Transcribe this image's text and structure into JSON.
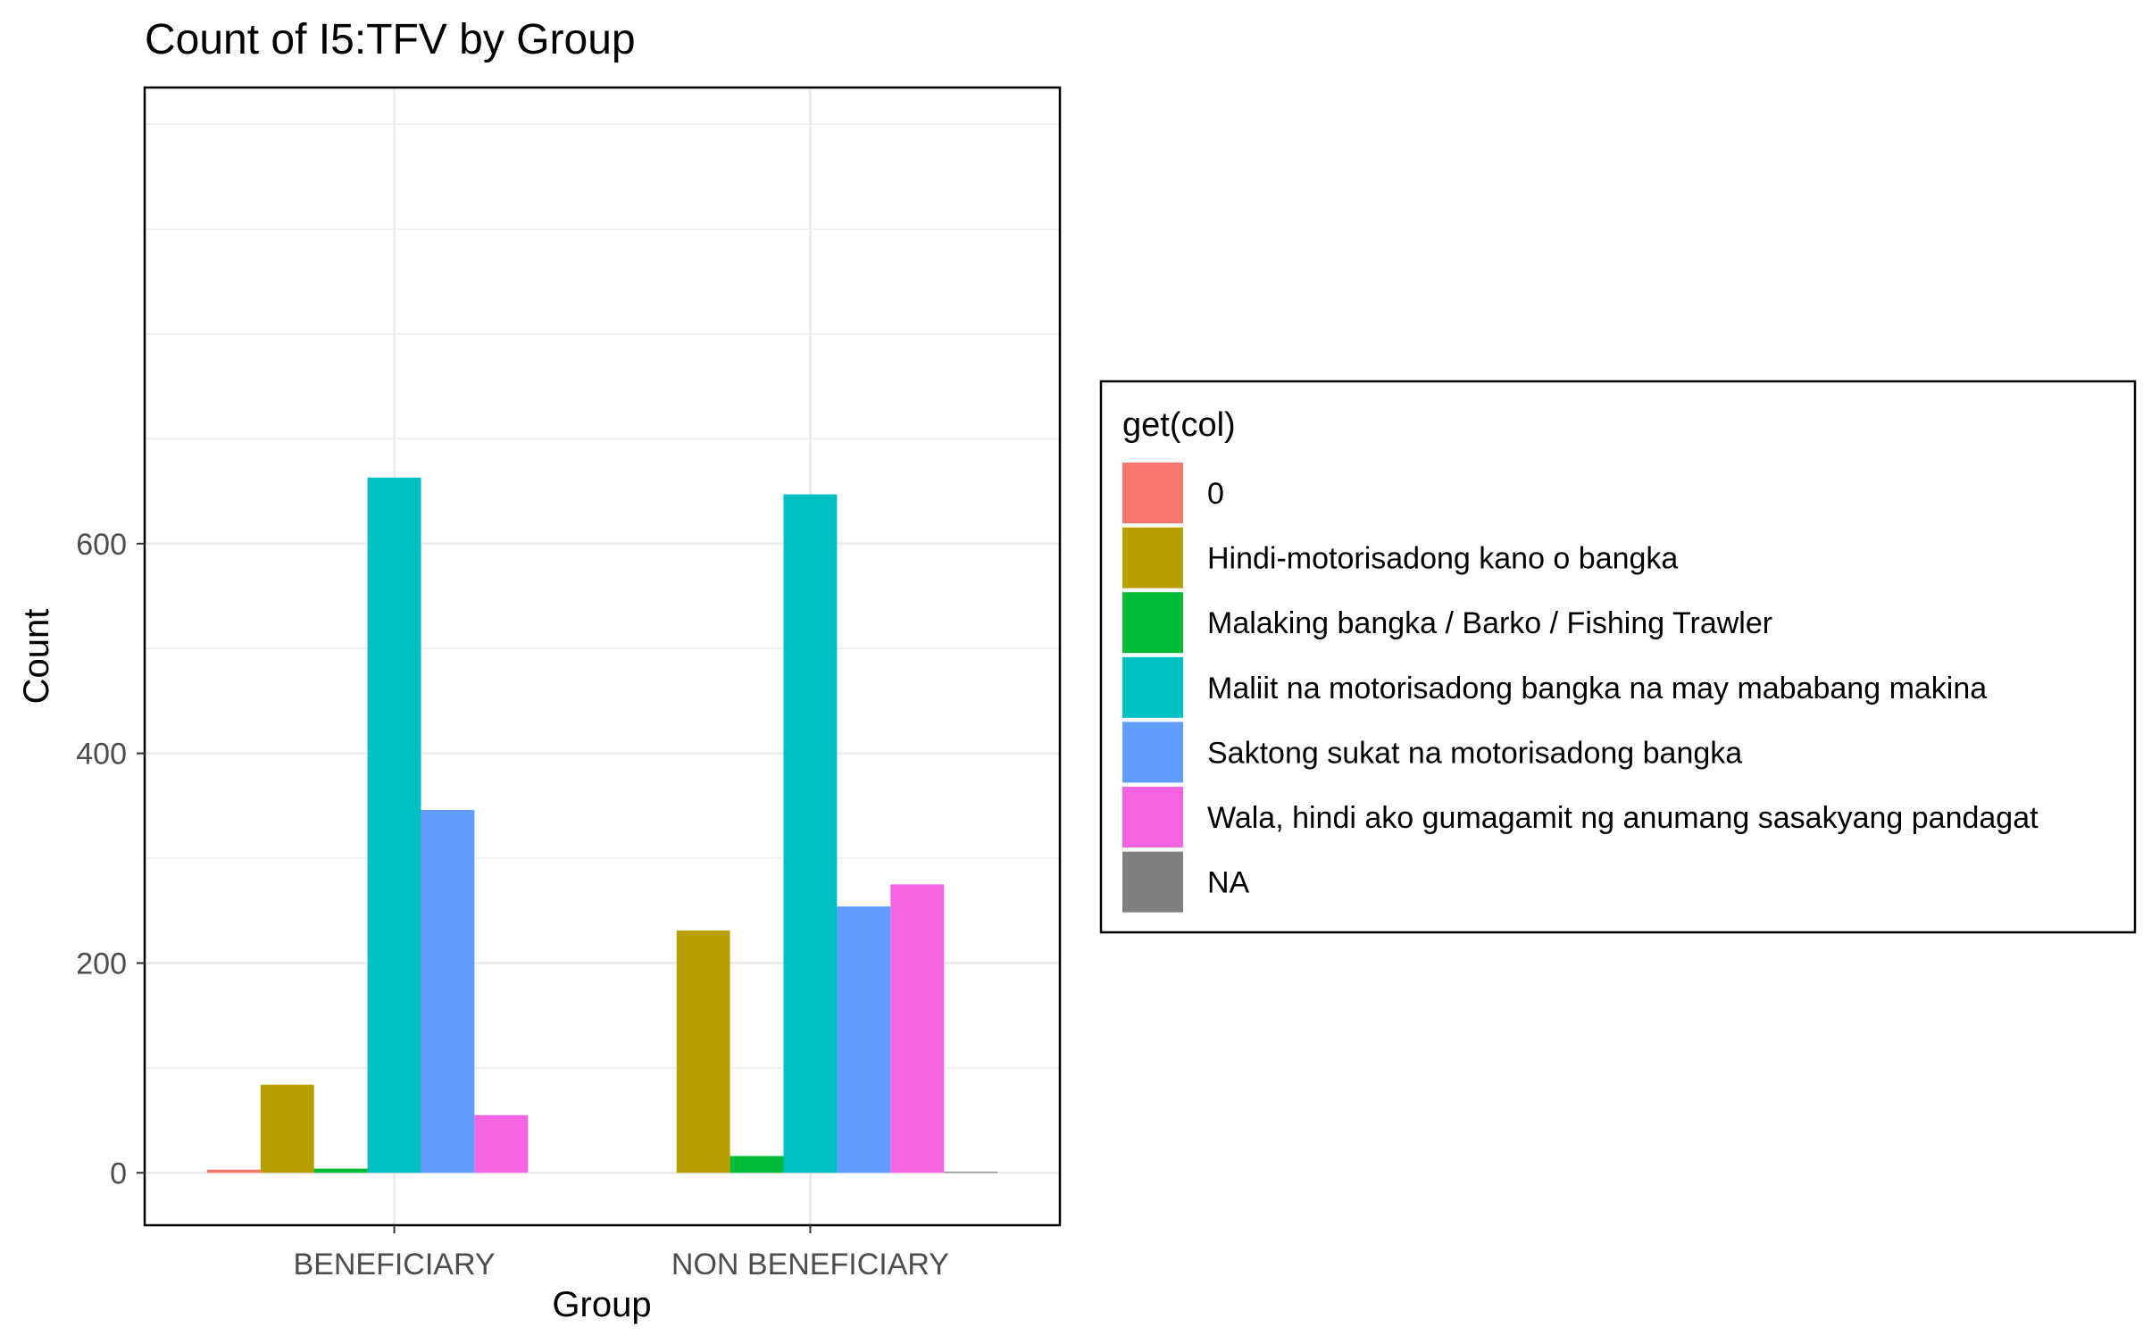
{
  "chart_data": {
    "type": "bar",
    "title": "Count of I5:TFV by Group",
    "xlabel": "Group",
    "ylabel": "Count",
    "categories": [
      "BENEFICIARY",
      "NON BENEFICIARY"
    ],
    "ylim": [
      -50,
      1035
    ],
    "yticks": [
      0,
      200,
      400,
      600
    ],
    "grid": true,
    "legend": {
      "title": "get(col)",
      "position": "right"
    },
    "series": [
      {
        "name": "0",
        "color": "#F8766D",
        "values": [
          3,
          0
        ]
      },
      {
        "name": "Hindi-motorisadong kano o bangka",
        "color": "#B79F00",
        "values": [
          84,
          231
        ]
      },
      {
        "name": "Malaking bangka / Barko / Fishing Trawler",
        "color": "#00BA38",
        "values": [
          4,
          16
        ]
      },
      {
        "name": "Maliit na motorisadong bangka na may mababang makina",
        "color": "#00BFC4",
        "values": [
          663,
          647
        ]
      },
      {
        "name": "Saktong sukat na motorisadong bangka",
        "color": "#619CFF",
        "values": [
          346,
          254
        ]
      },
      {
        "name": "Wala, hindi ako gumagamit ng anumang sasakyang pandagat",
        "color": "#F564E3",
        "values": [
          55,
          275
        ]
      },
      {
        "name": "NA",
        "color": "#7F7F7F",
        "values": [
          0,
          1
        ]
      }
    ]
  }
}
